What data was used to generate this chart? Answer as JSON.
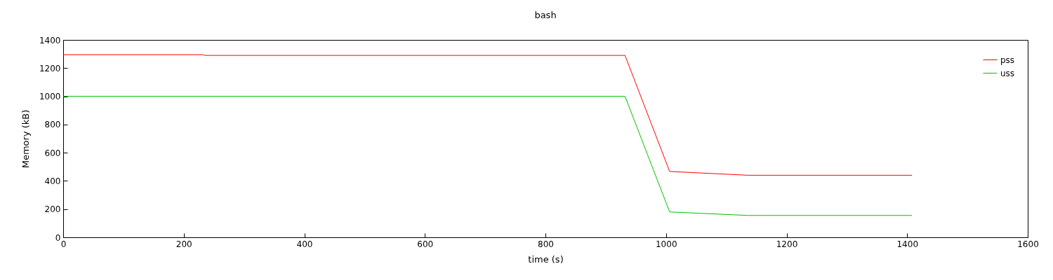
{
  "chart_data": {
    "type": "line",
    "title": "bash",
    "xlabel": "time (s)",
    "ylabel": "Memory (kB)",
    "xlim": [
      0,
      1600
    ],
    "xticks": [
      0,
      200,
      400,
      600,
      800,
      1000,
      1200,
      1400,
      1600
    ],
    "ylim": [
      0,
      1400
    ],
    "yticks": [
      0,
      200,
      400,
      600,
      800,
      1000,
      1200,
      1400
    ],
    "grid": false,
    "legend": "top right",
    "marker": "none",
    "line_style": "solid",
    "series": [
      {
        "name": "pss",
        "color": "#ff0000",
        "x": [
          0,
          233,
          234,
          932,
          1006,
          1136,
          1408
        ],
        "values": [
          1295,
          1295,
          1290,
          1290,
          467,
          440,
          440
        ]
      },
      {
        "name": "uss",
        "color": "#00c000",
        "x": [
          0,
          932,
          1006,
          1136,
          1408
        ],
        "values": [
          1000,
          1000,
          180,
          155,
          155
        ]
      }
    ]
  }
}
